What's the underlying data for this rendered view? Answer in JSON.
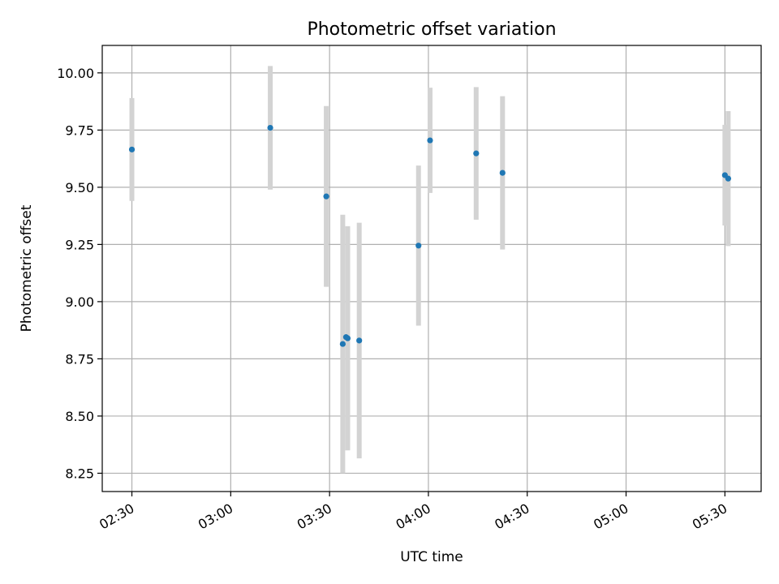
{
  "chart_data": {
    "type": "scatter",
    "title": "Photometric offset variation",
    "xlabel": "UTC time",
    "ylabel": "Photometric offset",
    "x_unit": "minutes since 00:00 UTC",
    "xlim": [
      "02:21",
      "05:41"
    ],
    "ylim": [
      8.17,
      10.12
    ],
    "xticks": [
      "02:30",
      "03:00",
      "03:30",
      "04:00",
      "04:30",
      "05:00",
      "05:30"
    ],
    "yticks": [
      "8.25",
      "8.50",
      "8.75",
      "9.00",
      "9.25",
      "9.50",
      "9.75",
      "10.00"
    ],
    "grid": true,
    "point_color": "#1f77b4",
    "errorbar_color": "#d3d3d3",
    "points": [
      {
        "x": "02:30",
        "y": 9.665,
        "err": 0.225
      },
      {
        "x": "03:12",
        "y": 9.76,
        "err": 0.27
      },
      {
        "x": "03:29",
        "y": 9.46,
        "err": 0.395
      },
      {
        "x": "03:34",
        "y": 8.815,
        "err": 0.565
      },
      {
        "x": "03:35",
        "y": 8.845,
        "err": 0.0
      },
      {
        "x": "03:35.5",
        "y": 8.84,
        "err": 0.49
      },
      {
        "x": "03:39",
        "y": 8.83,
        "err": 0.515
      },
      {
        "x": "03:57",
        "y": 9.245,
        "err": 0.35
      },
      {
        "x": "04:00.5",
        "y": 9.705,
        "err": 0.23
      },
      {
        "x": "04:14.5",
        "y": 9.648,
        "err": 0.29
      },
      {
        "x": "04:22.5",
        "y": 9.563,
        "err": 0.335
      },
      {
        "x": "05:30",
        "y": 9.553,
        "err": 0.22
      },
      {
        "x": "05:31",
        "y": 9.538,
        "err": 0.295
      }
    ]
  }
}
